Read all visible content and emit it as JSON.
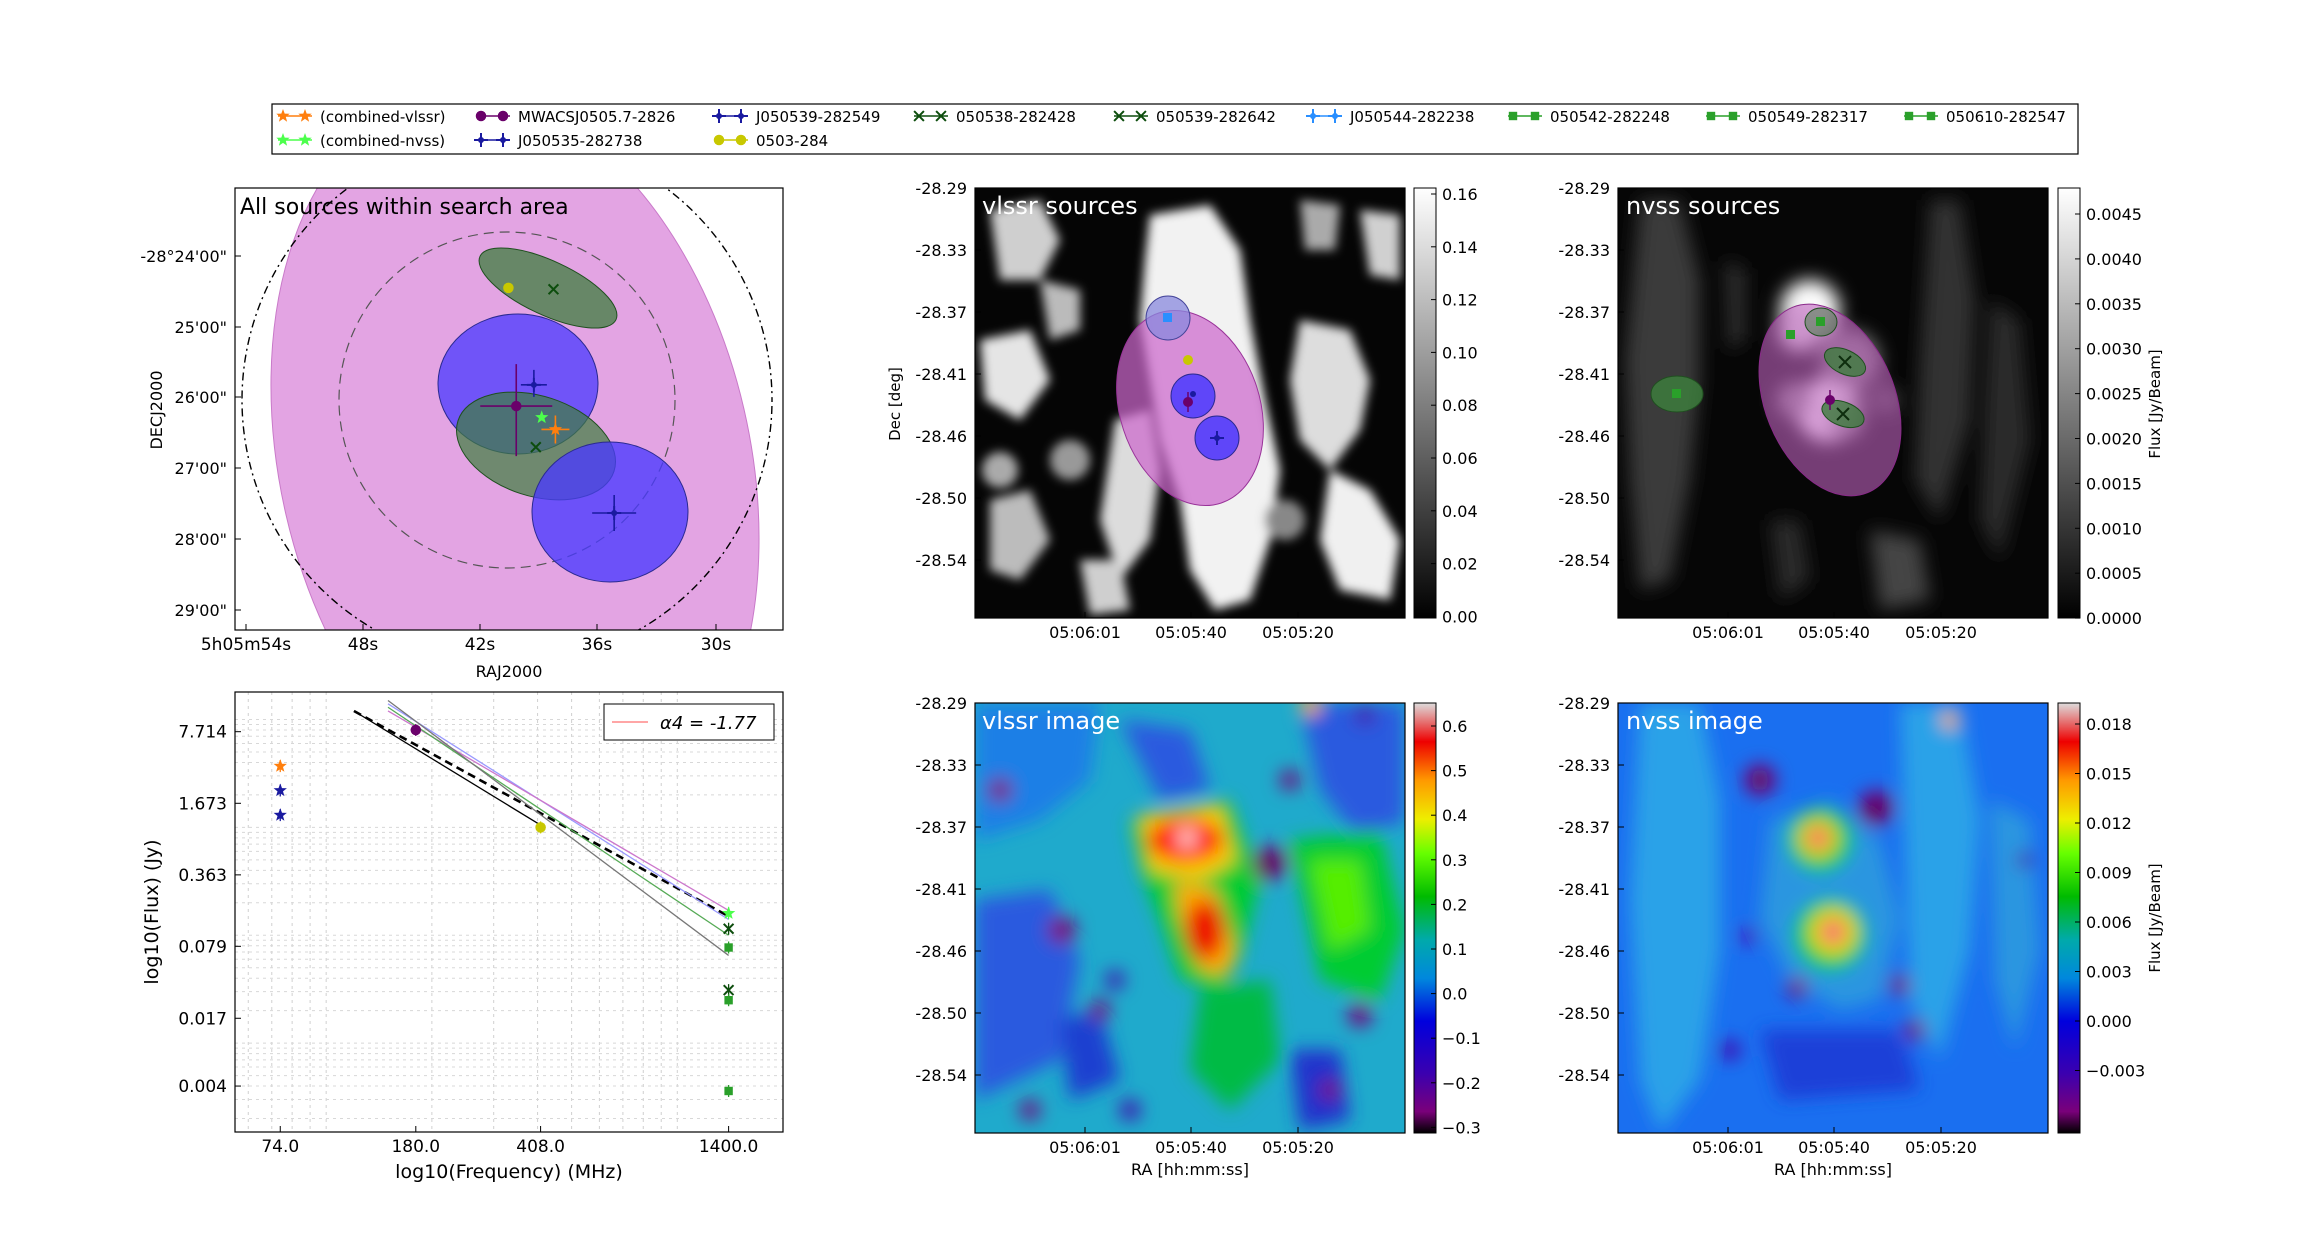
{
  "legend": {
    "entries": [
      {
        "label": "(combined-vlssr)",
        "color": "#ff7f0e",
        "marker": "star"
      },
      {
        "label": "(combined-nvss)",
        "color": "#4cff4c",
        "marker": "star"
      },
      {
        "label": "MWACSJ0505.7-2826",
        "color": "#6a006a",
        "marker": "circle"
      },
      {
        "label": "J050535-282738",
        "color": "#1a1aa0",
        "marker": "plus"
      },
      {
        "label": "J050539-282549",
        "color": "#1a1aa0",
        "marker": "plus"
      },
      {
        "label": "0503-284",
        "color": "#c8c800",
        "marker": "circle"
      },
      {
        "label": "050538-282428",
        "color": "#0d4d0d",
        "marker": "x"
      },
      {
        "label": "050539-282642",
        "color": "#0d4d0d",
        "marker": "x"
      },
      {
        "label": "J050544-282238",
        "color": "#2a8fff",
        "marker": "plus"
      },
      {
        "label": "050542-282248",
        "color": "#2aa02a",
        "marker": "square"
      },
      {
        "label": "050549-282317",
        "color": "#2aa02a",
        "marker": "square"
      },
      {
        "label": "050610-282547",
        "color": "#2aa02a",
        "marker": "square"
      }
    ]
  },
  "chart_data": [
    {
      "type": "scatter",
      "panel": "sky-overview",
      "title": "All sources within search area",
      "xlabel": "RAJ2000",
      "ylabel": "DECJ2000",
      "xticks": [
        "5h05m54s",
        "48s",
        "42s",
        "36s",
        "30s"
      ],
      "yticks": [
        "-28°24'00\"",
        "25'00\"",
        "26'00\"",
        "27'00\"",
        "28'00\"",
        "29'00\""
      ],
      "grid": false,
      "points": [
        {
          "source": "0503-284",
          "ra_s": 40.6,
          "dec_min": 24.45
        },
        {
          "source": "050538-282428",
          "ra_s": 38.3,
          "dec_min": 24.47
        },
        {
          "source": "J050539-282549",
          "ra_s": 39.3,
          "dec_min": 25.82
        },
        {
          "source": "MWACSJ0505.7-2826",
          "ra_s": 40.2,
          "dec_min": 26.12
        },
        {
          "source": "(combined-nvss)",
          "ra_s": 38.9,
          "dec_min": 26.28
        },
        {
          "source": "(combined-vlssr)",
          "ra_s": 38.2,
          "dec_min": 26.45
        },
        {
          "source": "050539-282642",
          "ra_s": 39.2,
          "dec_min": 26.7
        },
        {
          "source": "J050535-282738",
          "ra_s": 35.2,
          "dec_min": 27.63
        }
      ]
    },
    {
      "type": "scatter",
      "panel": "spectrum",
      "xlabel": "log10(Frequency) (MHz)",
      "ylabel": "log10(Flux) (Jy)",
      "xticks": [
        "74.0",
        "180.0",
        "408.0",
        "1400.0"
      ],
      "yticks": [
        "7.714",
        "1.673",
        "0.363",
        "0.079",
        "0.017",
        "0.004"
      ],
      "legend": "α4 = -1.77",
      "legend_position": "top-right",
      "grid": true,
      "points": [
        {
          "source": "(combined-vlssr)",
          "freq_mhz": 74,
          "flux_jy": 3.7
        },
        {
          "source": "J050539-282549",
          "freq_mhz": 74,
          "flux_jy": 2.2
        },
        {
          "source": "J050535-282738",
          "freq_mhz": 74,
          "flux_jy": 1.3
        },
        {
          "source": "MWACSJ0505.7-2826",
          "freq_mhz": 180,
          "flux_jy": 8.0
        },
        {
          "source": "0503-284",
          "freq_mhz": 408,
          "flux_jy": 1.0
        },
        {
          "source": "(combined-nvss)",
          "freq_mhz": 1400,
          "flux_jy": 0.16
        },
        {
          "source": "050539-282642",
          "freq_mhz": 1400,
          "flux_jy": 0.115
        },
        {
          "source": "050542-282248",
          "freq_mhz": 1400,
          "flux_jy": 0.077
        },
        {
          "source": "050538-282428",
          "freq_mhz": 1400,
          "flux_jy": 0.031
        },
        {
          "source": "050549-282317",
          "freq_mhz": 1400,
          "flux_jy": 0.025
        },
        {
          "source": "050610-282547",
          "freq_mhz": 1400,
          "flux_jy": 0.0036
        }
      ],
      "fit_lines": [
        {
          "color": "#000000",
          "style": "dashed",
          "from": [
            120,
            12.0
          ],
          "to": [
            1400,
            0.15
          ]
        },
        {
          "color": "#000000",
          "style": "solid",
          "from": [
            120,
            12.0
          ],
          "to": [
            408,
            1.05
          ]
        },
        {
          "color": "#9999ff",
          "style": "solid",
          "from": [
            150,
            14.0
          ],
          "to": [
            1400,
            0.14
          ]
        },
        {
          "color": "#cc77cc",
          "style": "solid",
          "from": [
            150,
            12.0
          ],
          "to": [
            1400,
            0.17
          ]
        },
        {
          "color": "#55aa55",
          "style": "solid",
          "from": [
            150,
            13.0
          ],
          "to": [
            1400,
            0.1
          ]
        },
        {
          "color": "#777777",
          "style": "solid",
          "from": [
            150,
            15.0
          ],
          "to": [
            1400,
            0.065
          ]
        }
      ]
    },
    {
      "type": "heatmap",
      "panel": "vlssr-sources",
      "title": "vlssr sources",
      "ylabel": "Dec [deg]",
      "xticks": [
        "05:06:01",
        "05:05:40",
        "05:05:20"
      ],
      "yticks": [
        "-28.29",
        "-28.33",
        "-28.37",
        "-28.41",
        "-28.46",
        "-28.50",
        "-28.54"
      ],
      "colorbar_ticks": [
        "0.16",
        "0.14",
        "0.12",
        "0.10",
        "0.08",
        "0.06",
        "0.04",
        "0.02",
        "0.00"
      ],
      "colormap": "gray"
    },
    {
      "type": "heatmap",
      "panel": "nvss-sources",
      "title": "nvss sources",
      "yticks": [
        "-28.29",
        "-28.33",
        "-28.37",
        "-28.41",
        "-28.46",
        "-28.50",
        "-28.54"
      ],
      "xticks": [
        "05:06:01",
        "05:05:40",
        "05:05:20"
      ],
      "colorbar_label": "Flux [Jy/Beam]",
      "colorbar_ticks": [
        "0.0045",
        "0.0040",
        "0.0035",
        "0.0030",
        "0.0025",
        "0.0020",
        "0.0015",
        "0.0010",
        "0.0005",
        "0.0000"
      ],
      "colormap": "gray"
    },
    {
      "type": "heatmap",
      "panel": "vlssr-image",
      "title": "vlssr image",
      "xlabel": "RA [hh:mm:ss]",
      "xticks": [
        "05:06:01",
        "05:05:40",
        "05:05:20"
      ],
      "yticks": [
        "-28.29",
        "-28.33",
        "-28.37",
        "-28.41",
        "-28.46",
        "-28.50",
        "-28.54"
      ],
      "colorbar_ticks": [
        "0.6",
        "0.5",
        "0.4",
        "0.3",
        "0.2",
        "0.1",
        "0.0",
        "−0.1",
        "−0.2",
        "−0.3"
      ],
      "colormap": "spectral"
    },
    {
      "type": "heatmap",
      "panel": "nvss-image",
      "title": "nvss image",
      "xlabel": "RA [hh:mm:ss]",
      "xticks": [
        "05:06:01",
        "05:05:40",
        "05:05:20"
      ],
      "yticks": [
        "-28.29",
        "-28.33",
        "-28.37",
        "-28.41",
        "-28.46",
        "-28.50",
        "-28.54"
      ],
      "colorbar_label": "Flux [Jy/Beam]",
      "colorbar_ticks": [
        "0.018",
        "0.015",
        "0.012",
        "0.009",
        "0.006",
        "0.003",
        "0.000",
        "−0.003"
      ],
      "colormap": "spectral"
    }
  ]
}
